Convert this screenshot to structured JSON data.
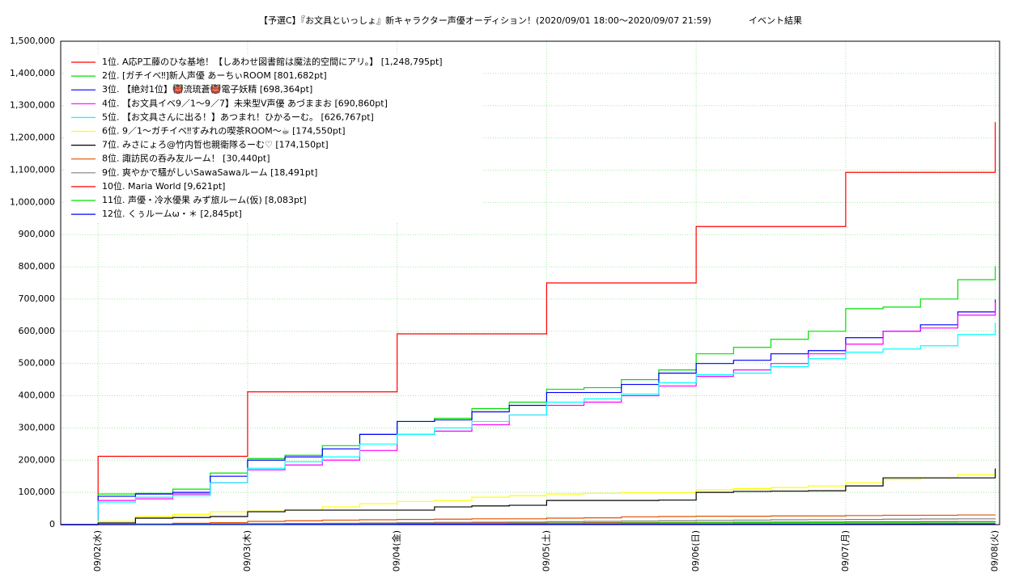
{
  "chart_data": {
    "type": "line",
    "step": "post",
    "title": "【予選C】『お文具といっしょ』新キャラクター声優オーディション！(2020/09/01 18:00〜2020/09/07 21:59)",
    "subtitle": "イベント結果",
    "x": [
      "2020-09-01T18:00",
      "2020-09-02T00:00",
      "2020-09-02T06:00",
      "2020-09-02T12:00",
      "2020-09-02T18:00",
      "2020-09-03T00:00",
      "2020-09-03T06:00",
      "2020-09-03T12:00",
      "2020-09-03T18:00",
      "2020-09-04T00:00",
      "2020-09-04T06:00",
      "2020-09-04T12:00",
      "2020-09-04T18:00",
      "2020-09-05T00:00",
      "2020-09-05T06:00",
      "2020-09-05T12:00",
      "2020-09-05T18:00",
      "2020-09-06T00:00",
      "2020-09-06T06:00",
      "2020-09-06T12:00",
      "2020-09-06T18:00",
      "2020-09-07T00:00",
      "2020-09-07T06:00",
      "2020-09-07T12:00",
      "2020-09-07T18:00",
      "2020-09-08T00:00"
    ],
    "xlim": [
      "2020-09-01T18:00",
      "2020-09-08T00:42"
    ],
    "xticks": [
      {
        "value": "2020-09-02T00:00",
        "label": "09/02(水)"
      },
      {
        "value": "2020-09-03T00:00",
        "label": "09/03(木)"
      },
      {
        "value": "2020-09-04T00:00",
        "label": "09/04(金)"
      },
      {
        "value": "2020-09-05T00:00",
        "label": "09/05(土)"
      },
      {
        "value": "2020-09-06T00:00",
        "label": "09/06(日)"
      },
      {
        "value": "2020-09-07T00:00",
        "label": "09/07(月)"
      },
      {
        "value": "2020-09-08T00:00",
        "label": "09/08(火)"
      }
    ],
    "ylim": [
      0,
      1500000
    ],
    "yticks": [
      0,
      {
        "value": 100000,
        "label": "100,000"
      },
      {
        "value": 200000,
        "label": "200,000"
      },
      {
        "value": 300000,
        "label": "300,000"
      },
      {
        "value": 400000,
        "label": "400,000"
      },
      {
        "value": 500000,
        "label": "500,000"
      },
      {
        "value": 600000,
        "label": "600,000"
      },
      {
        "value": 700000,
        "label": "700,000"
      },
      {
        "value": 800000,
        "label": "800,000"
      },
      {
        "value": 900000,
        "label": "900,000"
      },
      {
        "value": 1000000,
        "label": "1,000,000"
      },
      {
        "value": 1100000,
        "label": "1,100,000"
      },
      {
        "value": 1200000,
        "label": "1,200,000"
      },
      {
        "value": 1300000,
        "label": "1,300,000"
      },
      {
        "value": 1400000,
        "label": "1,400,000"
      },
      {
        "value": 1500000,
        "label": "1,500,000"
      }
    ],
    "grid": true,
    "legend": "upper left",
    "series": [
      {
        "name": "1位. A応P工藤のひな基地！【しあわせ図書館は魔法的空間にアリ。】 [1,248,795pt]",
        "color": "#ff0000",
        "values": [
          0,
          212000,
          212000,
          212000,
          212000,
          412000,
          412000,
          412000,
          412000,
          592000,
          592000,
          592000,
          592000,
          750000,
          750000,
          750000,
          750000,
          925000,
          925000,
          925000,
          925000,
          1093000,
          1093000,
          1093000,
          1093000,
          1248795
        ]
      },
      {
        "name": "2位. [ガチイベ‼]新人声優 あーちぃROOM [801,682pt]",
        "color": "#00e000",
        "values": [
          0,
          95000,
          97000,
          110000,
          160000,
          205000,
          215000,
          245000,
          280000,
          320000,
          330000,
          360000,
          380000,
          420000,
          425000,
          450000,
          480000,
          530000,
          550000,
          575000,
          600000,
          670000,
          675000,
          700000,
          760000,
          801682
        ]
      },
      {
        "name": "3位. 【絶対1位】👹流琉蒼👹電子妖精 [698,364pt]",
        "color": "#0000ff",
        "values": [
          0,
          88000,
          95000,
          100000,
          150000,
          200000,
          210000,
          235000,
          280000,
          320000,
          325000,
          350000,
          370000,
          410000,
          410000,
          435000,
          470000,
          500000,
          510000,
          530000,
          540000,
          580000,
          600000,
          620000,
          660000,
          698364
        ]
      },
      {
        "name": "4位. 【お文具イベ9／1〜9／7】未来型V声優 あづままお [690,860pt]",
        "color": "#ff00ff",
        "values": [
          0,
          75000,
          80000,
          95000,
          130000,
          170000,
          185000,
          200000,
          230000,
          280000,
          290000,
          310000,
          340000,
          370000,
          380000,
          400000,
          430000,
          460000,
          480000,
          500000,
          530000,
          560000,
          600000,
          610000,
          650000,
          690860
        ]
      },
      {
        "name": "5位. 【お文具さんに出る！】あつまれ！ひかるーむ。 [626,767pt]",
        "color": "#00ffff",
        "values": [
          0,
          70000,
          85000,
          90000,
          130000,
          175000,
          195000,
          210000,
          250000,
          280000,
          300000,
          320000,
          340000,
          380000,
          390000,
          405000,
          440000,
          465000,
          470000,
          490000,
          515000,
          535000,
          545000,
          555000,
          590000,
          626767
        ]
      },
      {
        "name": "6位. 9／1〜ガチイベ‼すみれの喫茶ROOM〜☕ [174,550pt]",
        "color": "#ffff00",
        "values": [
          0,
          10000,
          25000,
          32000,
          40000,
          42000,
          45000,
          55000,
          65000,
          72000,
          75000,
          85000,
          90000,
          95000,
          97000,
          100000,
          100000,
          108000,
          112000,
          115000,
          120000,
          130000,
          140000,
          145000,
          155000,
          174550
        ]
      },
      {
        "name": "7位. みさにょろ@竹内哲也親衛隊るーむ♡ [174,150pt]",
        "color": "#000000",
        "values": [
          0,
          5000,
          20000,
          22000,
          25000,
          40000,
          45000,
          45000,
          45000,
          45000,
          55000,
          58000,
          60000,
          75000,
          75000,
          75000,
          76000,
          100000,
          103000,
          104000,
          105000,
          120000,
          145000,
          145000,
          145000,
          174150
        ]
      },
      {
        "name": "8位. 諏訪民の呑み友ルーム！ [30,440pt]",
        "color": "#e05000",
        "values": [
          0,
          0,
          2000,
          4000,
          6000,
          10000,
          12000,
          14000,
          15000,
          16000,
          17000,
          18000,
          18000,
          20000,
          21000,
          24000,
          25000,
          26000,
          26000,
          27000,
          27000,
          28000,
          29000,
          29000,
          30000,
          30440
        ]
      },
      {
        "name": "9位. 爽やかで騒がしいSawaSawaルーム [18,491pt]",
        "color": "#808080",
        "values": [
          0,
          0,
          0,
          1000,
          2000,
          3000,
          3500,
          4000,
          5000,
          6000,
          7000,
          7500,
          8000,
          9000,
          10000,
          11000,
          12000,
          13000,
          14000,
          15000,
          15500,
          16000,
          17000,
          17500,
          18000,
          18491
        ]
      },
      {
        "name": "10位. Maria World [9,621pt]",
        "color": "#ff0000",
        "values": [
          0,
          400,
          800,
          1200,
          1600,
          2000,
          2400,
          2800,
          3200,
          3600,
          4000,
          4400,
          4800,
          5200,
          5600,
          6000,
          6400,
          6800,
          7200,
          7600,
          8000,
          8400,
          8800,
          9000,
          9300,
          9621
        ]
      },
      {
        "name": "11位. 声優・冷水優果 みず旅ルーム(仮) [8,083pt]",
        "color": "#00e000",
        "values": [
          0,
          300,
          600,
          1000,
          1300,
          1600,
          2000,
          2300,
          2600,
          3000,
          3300,
          3600,
          4000,
          4300,
          4600,
          5000,
          5300,
          5600,
          6000,
          6300,
          6600,
          7000,
          7300,
          7600,
          7900,
          8083
        ]
      },
      {
        "name": "12位. くぅルームω・＊ [2,845pt]",
        "color": "#0000ff",
        "values": [
          0,
          100,
          200,
          300,
          400,
          500,
          600,
          700,
          800,
          900,
          1000,
          1100,
          1200,
          1300,
          1400,
          1500,
          1600,
          1700,
          1800,
          1900,
          2000,
          2200,
          2400,
          2600,
          2700,
          2845
        ]
      }
    ]
  }
}
